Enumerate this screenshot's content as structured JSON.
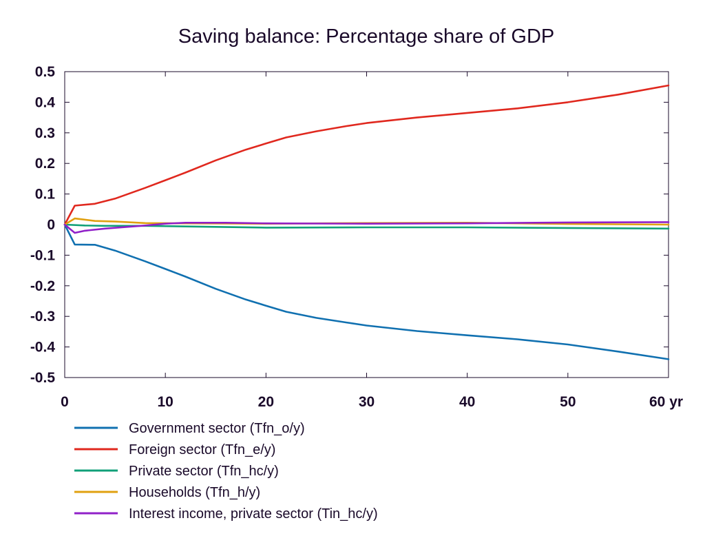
{
  "chart_data": {
    "type": "line",
    "title": "Saving balance: Percentage share of GDP",
    "xlabel": "",
    "ylabel": "",
    "xlim": [
      0,
      60
    ],
    "ylim": [
      -0.5,
      0.5
    ],
    "x_ticks": [
      "0",
      "10",
      "20",
      "30",
      "40",
      "50",
      "60 yr"
    ],
    "x_tick_values": [
      0,
      10,
      20,
      30,
      40,
      50,
      60
    ],
    "y_ticks": [
      "0.5",
      "0.4",
      "0.3",
      "0.2",
      "0.1",
      "0",
      "-0.1",
      "-0.2",
      "-0.3",
      "-0.4",
      "-0.5"
    ],
    "y_tick_values": [
      0.5,
      0.4,
      0.3,
      0.2,
      0.1,
      0,
      -0.1,
      -0.2,
      -0.3,
      -0.4,
      -0.5
    ],
    "grid": false,
    "legend_position": "bottom",
    "series": [
      {
        "name": "Government sector (Tfn_o/y)",
        "color": "#1070b0",
        "x": [
          0,
          1,
          3,
          5,
          8,
          10,
          12,
          15,
          18,
          20,
          22,
          25,
          28,
          30,
          35,
          40,
          45,
          50,
          55,
          60
        ],
        "y": [
          0,
          -0.065,
          -0.066,
          -0.085,
          -0.12,
          -0.145,
          -0.17,
          -0.21,
          -0.245,
          -0.265,
          -0.285,
          -0.305,
          -0.32,
          -0.33,
          -0.348,
          -0.362,
          -0.375,
          -0.392,
          -0.415,
          -0.44
        ]
      },
      {
        "name": "Foreign sector (Tfn_e/y)",
        "color": "#e0281e",
        "x": [
          0,
          1,
          3,
          5,
          8,
          10,
          12,
          15,
          18,
          20,
          22,
          25,
          28,
          30,
          35,
          40,
          45,
          50,
          55,
          60
        ],
        "y": [
          0,
          0.062,
          0.068,
          0.085,
          0.12,
          0.145,
          0.17,
          0.21,
          0.245,
          0.265,
          0.285,
          0.305,
          0.322,
          0.332,
          0.35,
          0.365,
          0.38,
          0.4,
          0.425,
          0.455
        ]
      },
      {
        "name": "Private sector (Tfn_hc/y)",
        "color": "#10a078",
        "x": [
          0,
          2,
          4,
          8,
          12,
          20,
          30,
          40,
          50,
          60
        ],
        "y": [
          0,
          -0.003,
          -0.004,
          -0.004,
          -0.006,
          -0.01,
          -0.009,
          -0.009,
          -0.011,
          -0.013
        ]
      },
      {
        "name": "Households (Tfn_h/y)",
        "color": "#e0a010",
        "x": [
          0,
          1,
          3,
          5,
          8,
          12,
          20,
          30,
          40,
          50,
          60
        ],
        "y": [
          0,
          0.02,
          0.012,
          0.01,
          0.005,
          0.004,
          0.003,
          0.005,
          0.006,
          0.002,
          0.0
        ]
      },
      {
        "name": "Interest income, private sector (Tin_hc/y)",
        "color": "#9020c8",
        "x": [
          0,
          1,
          2,
          4,
          6,
          8,
          10,
          12,
          16,
          20,
          30,
          40,
          50,
          60
        ],
        "y": [
          0,
          -0.027,
          -0.02,
          -0.013,
          -0.008,
          -0.003,
          0.003,
          0.006,
          0.006,
          0.004,
          0.003,
          0.004,
          0.007,
          0.008
        ]
      }
    ]
  }
}
